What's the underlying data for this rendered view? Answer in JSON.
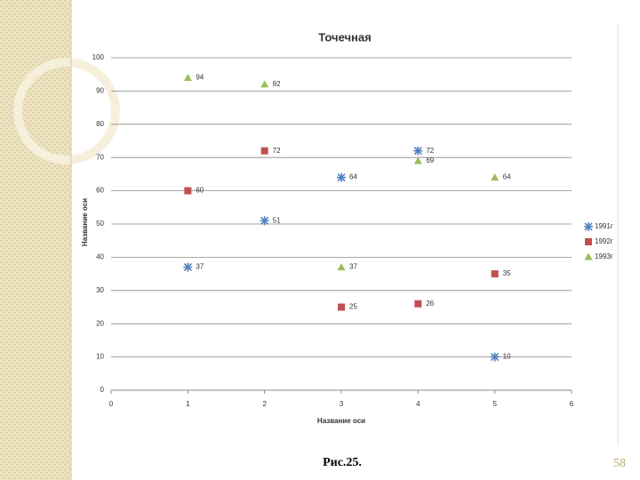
{
  "chart_data": {
    "type": "scatter",
    "title": "Точечная",
    "x_label": "Название оси",
    "y_label": "Название оси",
    "x": [
      1,
      2,
      3,
      4,
      5
    ],
    "series": [
      {
        "name": "1991г",
        "color": "#4f81bd",
        "marker": "star",
        "values": [
          37,
          51,
          64,
          72,
          10
        ]
      },
      {
        "name": "1992г",
        "color": "#c0504d",
        "marker": "square",
        "values": [
          60,
          72,
          25,
          26,
          35
        ]
      },
      {
        "name": "1993г",
        "color": "#9bbb59",
        "marker": "triangle",
        "values": [
          94,
          92,
          37,
          69,
          64
        ]
      }
    ],
    "xlim": [
      0,
      6
    ],
    "xticks": [
      0,
      1,
      2,
      3,
      4,
      5,
      6
    ],
    "ylim": [
      0,
      100
    ],
    "yticks": [
      0,
      10,
      20,
      30,
      40,
      50,
      60,
      70,
      80,
      90,
      100
    ],
    "grid": true,
    "legend": "right"
  },
  "slide": {
    "caption": "Рис.25.",
    "page_number": "58"
  }
}
